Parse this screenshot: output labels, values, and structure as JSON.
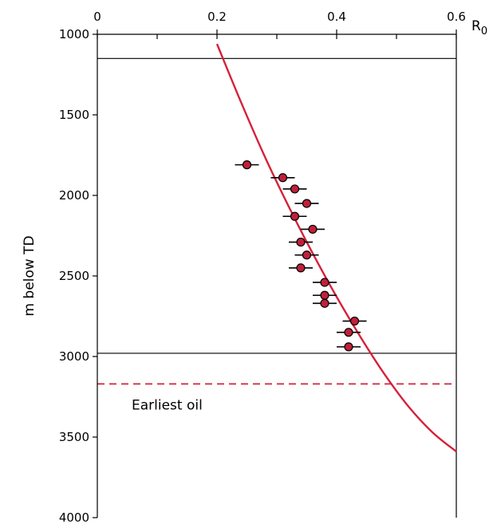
{
  "chart_data": {
    "type": "scatter",
    "x_axis": {
      "label": "R",
      "label_subscript": "0",
      "position": "top",
      "range": [
        0,
        0.6
      ],
      "ticks": [
        0,
        0.2,
        0.4,
        0.6
      ],
      "tick_labels": [
        "0",
        "0.2",
        "0.4",
        "0.6"
      ],
      "minor_ticks": [
        0.1,
        0.3,
        0.5
      ]
    },
    "y_axis": {
      "label": "m below TD",
      "range": [
        1000,
        4000
      ],
      "inverted": true,
      "ticks": [
        1000,
        1500,
        2000,
        2500,
        3000,
        3500,
        4000
      ],
      "tick_labels": [
        "1000",
        "1500",
        "2000",
        "2500",
        "3000",
        "3500",
        "4000"
      ]
    },
    "points": [
      {
        "x": 0.25,
        "y": 1810,
        "xerr": 0.02
      },
      {
        "x": 0.31,
        "y": 1890,
        "xerr": 0.02
      },
      {
        "x": 0.33,
        "y": 1960,
        "xerr": 0.02
      },
      {
        "x": 0.35,
        "y": 2050,
        "xerr": 0.02
      },
      {
        "x": 0.33,
        "y": 2130,
        "xerr": 0.02
      },
      {
        "x": 0.36,
        "y": 2210,
        "xerr": 0.02
      },
      {
        "x": 0.34,
        "y": 2290,
        "xerr": 0.02
      },
      {
        "x": 0.35,
        "y": 2370,
        "xerr": 0.02
      },
      {
        "x": 0.34,
        "y": 2450,
        "xerr": 0.02
      },
      {
        "x": 0.38,
        "y": 2540,
        "xerr": 0.02
      },
      {
        "x": 0.38,
        "y": 2620,
        "xerr": 0.02
      },
      {
        "x": 0.38,
        "y": 2670,
        "xerr": 0.02
      },
      {
        "x": 0.43,
        "y": 2780,
        "xerr": 0.02
      },
      {
        "x": 0.42,
        "y": 2850,
        "xerr": 0.02
      },
      {
        "x": 0.42,
        "y": 2940,
        "xerr": 0.02
      }
    ],
    "trend_curve": {
      "x": [
        0.2,
        0.24,
        0.28,
        0.32,
        0.36,
        0.4,
        0.44,
        0.48,
        0.52,
        0.56,
        0.6
      ],
      "y": [
        1060,
        1420,
        1760,
        2070,
        2360,
        2630,
        2880,
        3110,
        3310,
        3470,
        3590
      ]
    },
    "horizontal_lines": [
      {
        "y": 1150,
        "style": "solid",
        "color": "#000000"
      },
      {
        "y": 2980,
        "style": "solid",
        "color": "#000000"
      },
      {
        "y": 3170,
        "style": "dashed",
        "color": "#d6213a"
      }
    ],
    "annotations": [
      {
        "text": "Earliest oil",
        "x": 0.02,
        "y": 3330
      }
    ],
    "colors": {
      "curve": "#d6213a",
      "marker_fill": "#c0203a",
      "marker_stroke": "#000000",
      "axis": "#000000"
    },
    "grid": false,
    "legend": "none"
  }
}
